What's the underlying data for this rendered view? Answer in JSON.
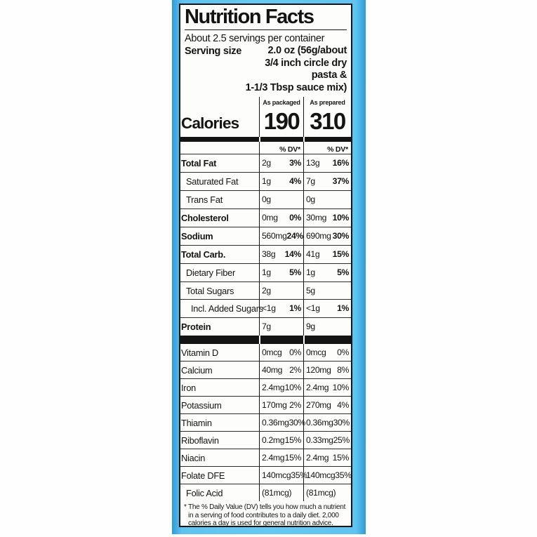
{
  "colors": {
    "package_blue": "#5fc3ef",
    "package_blue_dark": "#2f9ad6",
    "label_background": "#fdfdfc",
    "label_text": "#141414"
  },
  "title": "Nutrition Facts",
  "servings_per_container": "About 2.5 servings per container",
  "serving_size": {
    "label": "Serving size",
    "lines": [
      "2.0 oz (56g/about",
      "3/4 inch circle dry pasta &",
      "1-1/3 Tbsp sauce mix)"
    ]
  },
  "column_headers": {
    "packaged": "As packaged",
    "prepared": "As prepared"
  },
  "calories": {
    "label": "Calories",
    "packaged": "190",
    "prepared": "310"
  },
  "dv_header": "% DV*",
  "main_nutrients": [
    {
      "label": "Total Fat",
      "bold": true,
      "indent": 0,
      "packaged_amount": "2g",
      "packaged_dv": "3%",
      "prepared_amount": "13g",
      "prepared_dv": "16%"
    },
    {
      "label": "Saturated Fat",
      "bold": false,
      "indent": 1,
      "packaged_amount": "1g",
      "packaged_dv": "4%",
      "prepared_amount": "7g",
      "prepared_dv": "37%"
    },
    {
      "label": "Trans Fat",
      "bold": false,
      "indent": 1,
      "packaged_amount": "0g",
      "packaged_dv": "",
      "prepared_amount": "0g",
      "prepared_dv": ""
    },
    {
      "label": "Cholesterol",
      "bold": true,
      "indent": 0,
      "packaged_amount": "0mg",
      "packaged_dv": "0%",
      "prepared_amount": "30mg",
      "prepared_dv": "10%"
    },
    {
      "label": "Sodium",
      "bold": true,
      "indent": 0,
      "packaged_amount": "560mg",
      "packaged_dv": "24%",
      "prepared_amount": "690mg",
      "prepared_dv": "30%"
    },
    {
      "label": "Total Carb.",
      "bold": true,
      "indent": 0,
      "packaged_amount": "38g",
      "packaged_dv": "14%",
      "prepared_amount": "41g",
      "prepared_dv": "15%"
    },
    {
      "label": "Dietary Fiber",
      "bold": false,
      "indent": 1,
      "packaged_amount": "1g",
      "packaged_dv": "5%",
      "prepared_amount": "1g",
      "prepared_dv": "5%"
    },
    {
      "label": "Total Sugars",
      "bold": false,
      "indent": 1,
      "packaged_amount": "2g",
      "packaged_dv": "",
      "prepared_amount": "5g",
      "prepared_dv": ""
    },
    {
      "label": "Incl. Added Sugars",
      "bold": false,
      "indent": 2,
      "packaged_amount": "<1g",
      "packaged_dv": "1%",
      "prepared_amount": "<1g",
      "prepared_dv": "1%"
    },
    {
      "label": "Protein",
      "bold": true,
      "indent": 0,
      "packaged_amount": "7g",
      "packaged_dv": "",
      "prepared_amount": "9g",
      "prepared_dv": ""
    }
  ],
  "vitamins": [
    {
      "label": "Vitamin D",
      "bold": false,
      "indent": 0,
      "packaged_amount": "0mcg",
      "packaged_dv": "0%",
      "prepared_amount": "0mcg",
      "prepared_dv": "0%"
    },
    {
      "label": "Calcium",
      "bold": false,
      "indent": 0,
      "packaged_amount": "40mg",
      "packaged_dv": "2%",
      "prepared_amount": "120mg",
      "prepared_dv": "8%"
    },
    {
      "label": "Iron",
      "bold": false,
      "indent": 0,
      "packaged_amount": "2.4mg",
      "packaged_dv": "10%",
      "prepared_amount": "2.4mg",
      "prepared_dv": "10%"
    },
    {
      "label": "Potassium",
      "bold": false,
      "indent": 0,
      "packaged_amount": "170mg",
      "packaged_dv": "2%",
      "prepared_amount": "270mg",
      "prepared_dv": "4%"
    },
    {
      "label": "Thiamin",
      "bold": false,
      "indent": 0,
      "packaged_amount": "0.36mg",
      "packaged_dv": "30%",
      "prepared_amount": "0.36mg",
      "prepared_dv": "30%"
    },
    {
      "label": "Riboflavin",
      "bold": false,
      "indent": 0,
      "packaged_amount": "0.2mg",
      "packaged_dv": "15%",
      "prepared_amount": "0.33mg",
      "prepared_dv": "25%"
    },
    {
      "label": "Niacin",
      "bold": false,
      "indent": 0,
      "packaged_amount": "2.4mg",
      "packaged_dv": "15%",
      "prepared_amount": "2.4mg",
      "prepared_dv": "15%"
    },
    {
      "label": "Folate DFE",
      "bold": false,
      "indent": 0,
      "packaged_amount": "140mcg",
      "packaged_dv": "35%",
      "prepared_amount": "140mcg",
      "prepared_dv": "35%"
    },
    {
      "label": "Folic Acid",
      "bold": false,
      "indent": 1,
      "packaged_amount": "(81mcg)",
      "packaged_dv": "",
      "prepared_amount": "(81mcg)",
      "prepared_dv": ""
    }
  ],
  "footnote": "* The % Daily Value (DV) tells you how much a nutrient in a serving of food contributes to a daily diet. 2,000 calories a day is used for general nutrition advice."
}
